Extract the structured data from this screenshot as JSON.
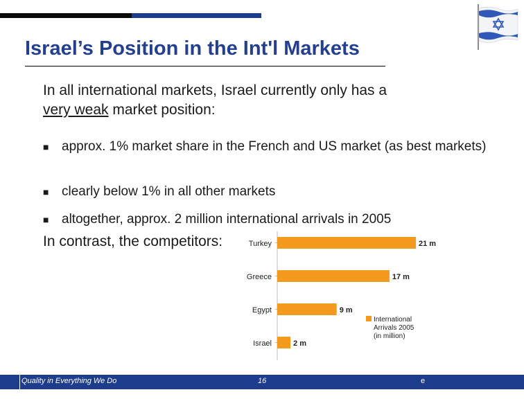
{
  "slide": {
    "title": "Israel’s Position in the Int'l Markets",
    "intro_plain": "In all international markets, Israel currently only has a",
    "intro_underlined": "very weak",
    "intro_rest": " market position:",
    "bullets": [
      "approx. 1% market share in the French and US market (as best markets)",
      "clearly below 1% in all other markets",
      "altogether, approx. 2 million international arrivals in 2005"
    ],
    "contrast": "In contrast, the competitors:",
    "bullet_icon": "square-bullet-icon",
    "flag_icon": "israel-flag-icon"
  },
  "chart_data": {
    "type": "bar",
    "orientation": "horizontal",
    "categories": [
      "Turkey",
      "Greece",
      "Egypt",
      "Israel"
    ],
    "values": [
      21,
      17,
      9,
      2
    ],
    "value_labels": [
      "21 m",
      "17 m",
      "9 m",
      "2 m"
    ],
    "legend": [
      "International",
      "Arrivals 2005",
      "(in million)"
    ],
    "legend_placement": "right",
    "bar_color": "#f39a1e",
    "xlim": [
      0,
      21
    ]
  },
  "footer": {
    "motto": "Quality in Everything We Do",
    "page": "16",
    "end": "e"
  },
  "colors": {
    "accent": "#233f8e",
    "footer_bg": "#1e3c8c",
    "bar": "#f39a1e"
  }
}
